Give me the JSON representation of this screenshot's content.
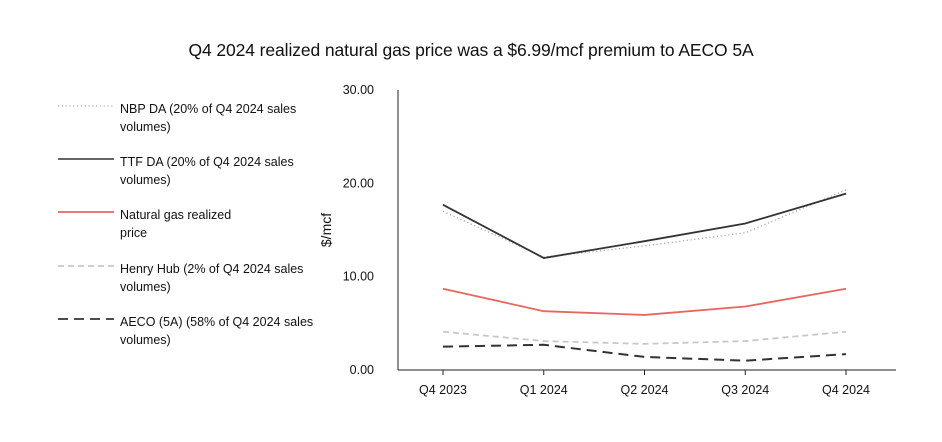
{
  "chart_data": {
    "type": "line",
    "title": "Q4 2024 realized natural gas price was a $6.99/mcf premium to AECO 5A",
    "xlabel": "",
    "ylabel": "$/mcf",
    "ylim": [
      0,
      30
    ],
    "yticks": [
      "0.00",
      "10.00",
      "20.00",
      "30.00"
    ],
    "ytick_values": [
      0,
      10,
      20,
      30
    ],
    "categories": [
      "Q4 2023",
      "Q1 2024",
      "Q2 2024",
      "Q3 2024",
      "Q4 2024"
    ],
    "legend_position": "left",
    "series": [
      {
        "name": "NBP DA (20% of Q4 2024 sales volumes)",
        "color": "#aaaaaa",
        "style": "dotted",
        "values": [
          17.0,
          12.1,
          13.3,
          14.7,
          19.3
        ]
      },
      {
        "name": "TTF DA (20% of Q4 2024 sales volumes)",
        "color": "#333333",
        "style": "solid",
        "values": [
          17.7,
          12.0,
          13.8,
          15.7,
          18.9
        ]
      },
      {
        "name": "Natural gas realized price",
        "color": "#e8665f",
        "style": "solid",
        "values": [
          8.7,
          6.3,
          5.9,
          6.8,
          8.7
        ]
      },
      {
        "name": "Henry Hub (2% of Q4 2024 sales volumes)",
        "color": "#c8c8c8",
        "style": "dashed",
        "values": [
          4.1,
          3.1,
          2.8,
          3.1,
          4.1
        ]
      },
      {
        "name": "AECO (5A) (58% of Q4 2024 sales volumes)",
        "color": "#333333",
        "style": "longdash",
        "values": [
          2.5,
          2.7,
          1.4,
          1.0,
          1.7
        ]
      }
    ]
  }
}
